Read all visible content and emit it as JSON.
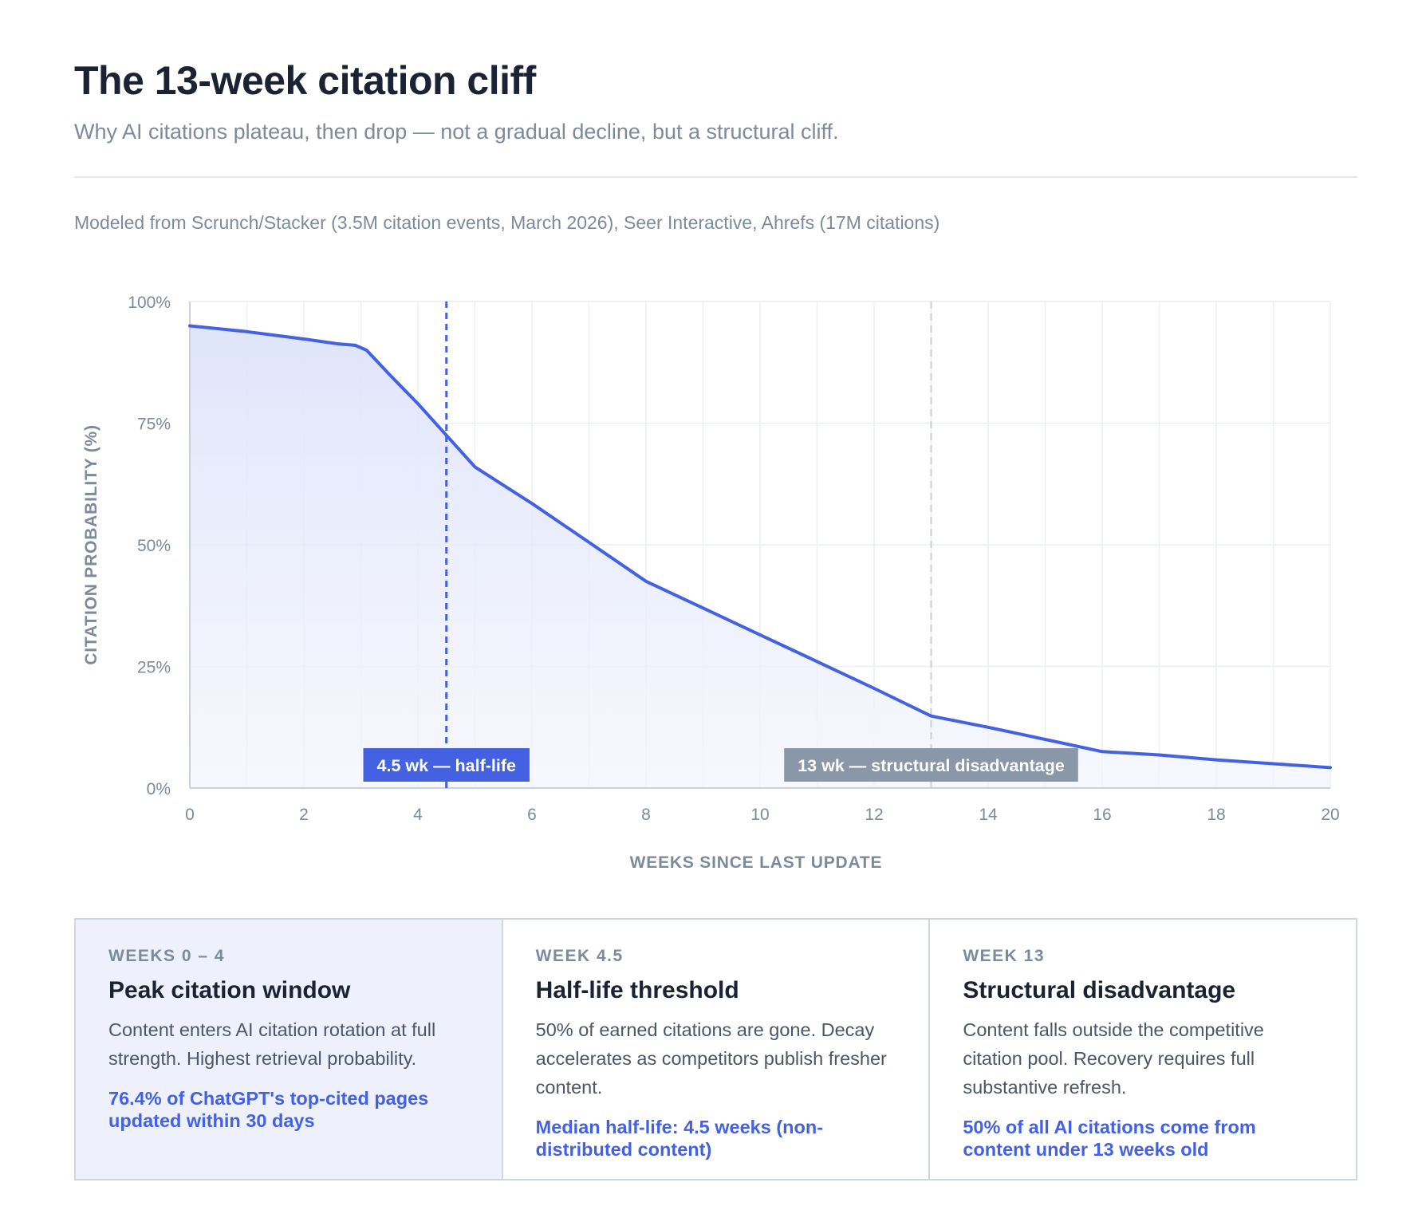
{
  "header": {
    "title": "The 13-week citation cliff",
    "subtitle": "Why AI citations plateau, then drop — not a gradual decline, but a structural cliff.",
    "source": "Modeled from Scrunch/Stacker (3.5M citation events, March 2026), Seer Interactive, Ahrefs (17M citations)"
  },
  "colors": {
    "line": "#4361e0",
    "half_life_marker": "#4361e0",
    "cliff_marker": "#8a97a8",
    "area_fill": "#e3e8fb",
    "grid": "#eceff4"
  },
  "chart_data": {
    "type": "area",
    "xlabel": "WEEKS SINCE LAST UPDATE",
    "ylabel": "CITATION PROBABILITY (%)",
    "xlim": [
      0,
      20
    ],
    "ylim": [
      0,
      100
    ],
    "x_ticks": [
      "0",
      "2",
      "4",
      "6",
      "8",
      "10",
      "12",
      "14",
      "16",
      "18",
      "20"
    ],
    "y_ticks": [
      "0%",
      "25%",
      "50%",
      "75%",
      "100%"
    ],
    "grid": true,
    "x": [
      0,
      1,
      2,
      2.6,
      2.9,
      3.1,
      3.5,
      4,
      4.5,
      5,
      6,
      7,
      8,
      9,
      10,
      11,
      12,
      13,
      14,
      15,
      16,
      17,
      18,
      19,
      20
    ],
    "y": [
      95,
      93.8,
      92.3,
      91.3,
      91,
      90,
      85,
      79,
      72.5,
      66,
      58.5,
      50.5,
      42.5,
      37,
      31.5,
      26,
      20.5,
      14.8,
      12.5,
      10,
      7.5,
      6.8,
      5.8,
      5,
      4.2
    ],
    "annotations": [
      {
        "x": 4.5,
        "label": "4.5 wk — half-life",
        "style": "primary"
      },
      {
        "x": 13,
        "label": "13 wk — structural disadvantage",
        "style": "muted"
      }
    ]
  },
  "cards": [
    {
      "eyebrow": "WEEKS 0 – 4",
      "title": "Peak citation window",
      "body": "Content enters AI citation rotation at full strength. Highest retrieval probability.",
      "stat": "76.4% of ChatGPT's top-cited pages updated within 30 days"
    },
    {
      "eyebrow": "WEEK 4.5",
      "title": "Half-life threshold",
      "body": "50% of earned citations are gone. Decay accelerates as competitors publish fresher content.",
      "stat": "Median half-life: 4.5 weeks (non-distributed content)"
    },
    {
      "eyebrow": "WEEK 13",
      "title": "Structural disadvantage",
      "body": "Content falls outside the competitive citation pool. Recovery requires full substantive refresh.",
      "stat": "50% of all AI citations come from content under 13 weeks old"
    }
  ]
}
